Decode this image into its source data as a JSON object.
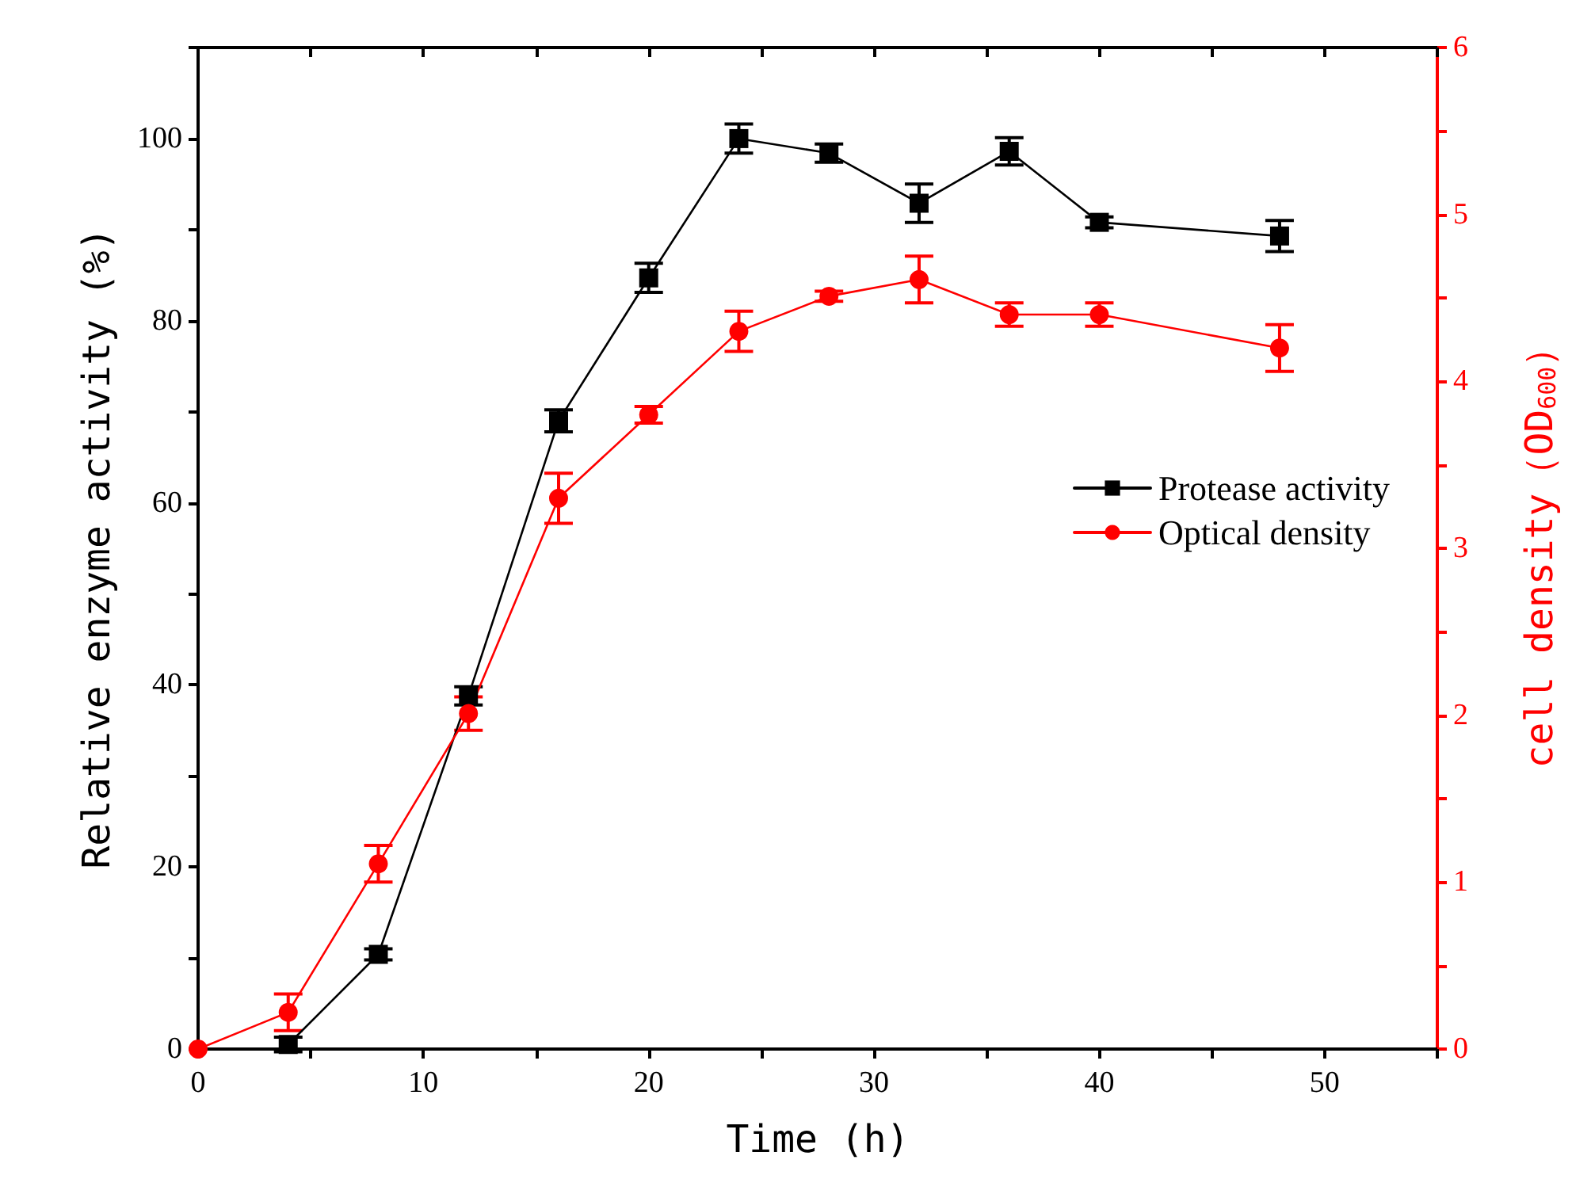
{
  "chart_data": {
    "type": "line",
    "xlabel": "Time (h)",
    "ylabel": "Relative enzyme activity (%)",
    "y2label": "cell density（OD$_{600}$）",
    "x": [
      0,
      4,
      8,
      12,
      16,
      20,
      24,
      28,
      32,
      36,
      40,
      48
    ],
    "series": [
      {
        "name": "Protease activity",
        "color": "#000000",
        "marker": "square",
        "x": [
          4,
          8,
          12,
          16,
          20,
          24,
          28,
          32,
          36,
          40,
          48
        ],
        "values": [
          0.5,
          10.4,
          38.8,
          69,
          84.7,
          100,
          98.4,
          92.9,
          98.6,
          90.8,
          89.3
        ],
        "errors": [
          0.8,
          0.6,
          1,
          1.2,
          1.6,
          1.6,
          1,
          2.1,
          1.5,
          0.6,
          1.7
        ]
      },
      {
        "name": "Optical density",
        "color": "#ff0000",
        "marker": "circle",
        "axis": "y2",
        "values": [
          0,
          0.22,
          1.11,
          2.01,
          3.3,
          3.8,
          4.3,
          4.51,
          4.61,
          4.4,
          4.4,
          4.2
        ],
        "errors": [
          null,
          0.11,
          0.11,
          0.1,
          0.15,
          0.05,
          0.12,
          0.03,
          0.14,
          0.07,
          0.07,
          0.14
        ]
      }
    ],
    "xlim": [
      0,
      55
    ],
    "xticks": [
      0,
      {
        "value": 5,
        "label": null
      },
      10,
      {
        "value": 15,
        "label": null
      },
      20,
      {
        "value": 25,
        "label": null
      },
      30,
      {
        "value": 35,
        "label": null
      },
      40,
      {
        "value": 45,
        "label": null
      },
      50,
      {
        "value": 55,
        "label": null
      }
    ],
    "ylim": [
      0,
      110
    ],
    "yticks": [
      0,
      {
        "value": 10,
        "label": null
      },
      20,
      {
        "value": 30,
        "label": null
      },
      40,
      {
        "value": 50,
        "label": null
      },
      60,
      {
        "value": 70,
        "label": null
      },
      80,
      {
        "value": 90,
        "label": null
      },
      100,
      {
        "value": 110,
        "label": null
      }
    ],
    "y2lim": [
      0,
      6
    ],
    "y2ticks": [
      0,
      {
        "value": 0.5,
        "label": null
      },
      1,
      {
        "value": 1.5,
        "label": null
      },
      2,
      {
        "value": 2.5,
        "label": null
      },
      3,
      {
        "value": 3.5,
        "label": null
      },
      4,
      {
        "value": 4.5,
        "label": null
      },
      5,
      {
        "value": 5.5,
        "label": null
      },
      6
    ],
    "grid": false,
    "legend": "right",
    "line_style": "solid"
  }
}
